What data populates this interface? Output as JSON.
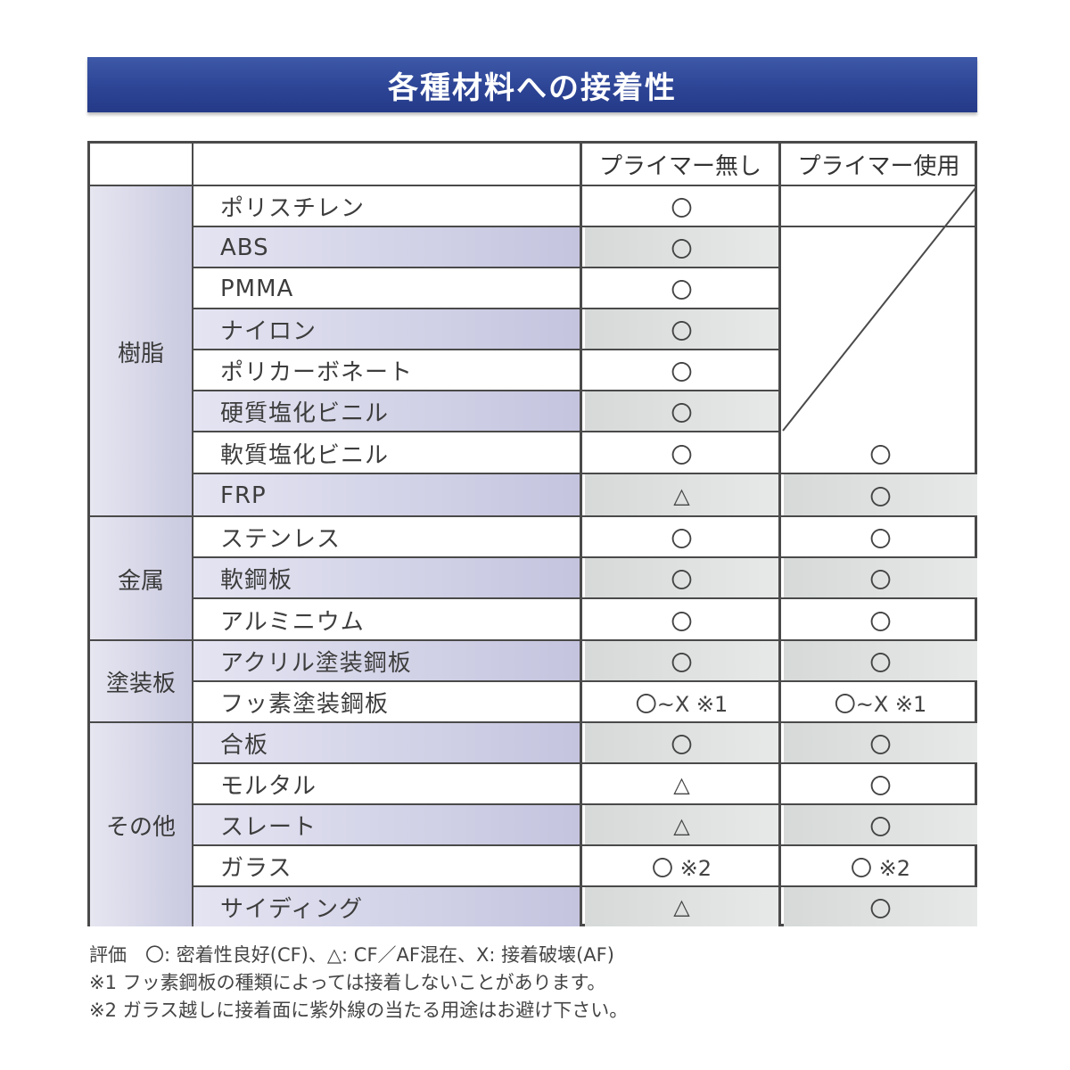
{
  "title": "各種材料への接着性",
  "headers": {
    "no_primer": "プライマー無し",
    "with_primer": "プライマー使用"
  },
  "categories": {
    "resin": "樹脂",
    "metal": "金属",
    "painted": "塗装板",
    "other": "その他"
  },
  "rows": [
    {
      "material": "ポリスチレン",
      "no_primer": "〇",
      "with_primer": ""
    },
    {
      "material": "ABS",
      "no_primer": "〇",
      "with_primer": ""
    },
    {
      "material": "PMMA",
      "no_primer": "〇",
      "with_primer": ""
    },
    {
      "material": "ナイロン",
      "no_primer": "〇",
      "with_primer": ""
    },
    {
      "material": "ポリカーボネート",
      "no_primer": "〇",
      "with_primer": ""
    },
    {
      "material": "硬質塩化ビニル",
      "no_primer": "〇",
      "with_primer": ""
    },
    {
      "material": "軟質塩化ビニル",
      "no_primer": "〇",
      "with_primer": "〇"
    },
    {
      "material": "FRP",
      "no_primer": "△",
      "with_primer": "〇"
    },
    {
      "material": "ステンレス",
      "no_primer": "〇",
      "with_primer": "〇"
    },
    {
      "material": "軟鋼板",
      "no_primer": "〇",
      "with_primer": "〇"
    },
    {
      "material": "アルミニウム",
      "no_primer": "〇",
      "with_primer": "〇"
    },
    {
      "material": "アクリル塗装鋼板",
      "no_primer": "〇",
      "with_primer": "〇"
    },
    {
      "material": "フッ素塗装鋼板",
      "no_primer": "〇~X  ※1",
      "with_primer": "〇~X  ※1"
    },
    {
      "material": "合板",
      "no_primer": "〇",
      "with_primer": "〇"
    },
    {
      "material": "モルタル",
      "no_primer": "△",
      "with_primer": "〇"
    },
    {
      "material": "スレート",
      "no_primer": "△",
      "with_primer": "〇"
    },
    {
      "material": "ガラス",
      "no_primer": "〇      ※2",
      "with_primer": "〇      ※2"
    },
    {
      "material": "サイディング",
      "no_primer": "△",
      "with_primer": "〇"
    }
  ],
  "notes": [
    "評価　〇: 密着性良好(CF)、△: CF／AF混在、X: 接着破壊(AF)",
    "※1 フッ素鋼板の種類によっては接着しないことがあります。",
    "※2 ガラス越しに接着面に紫外線の当たる用途はお避け下さい。"
  ]
}
